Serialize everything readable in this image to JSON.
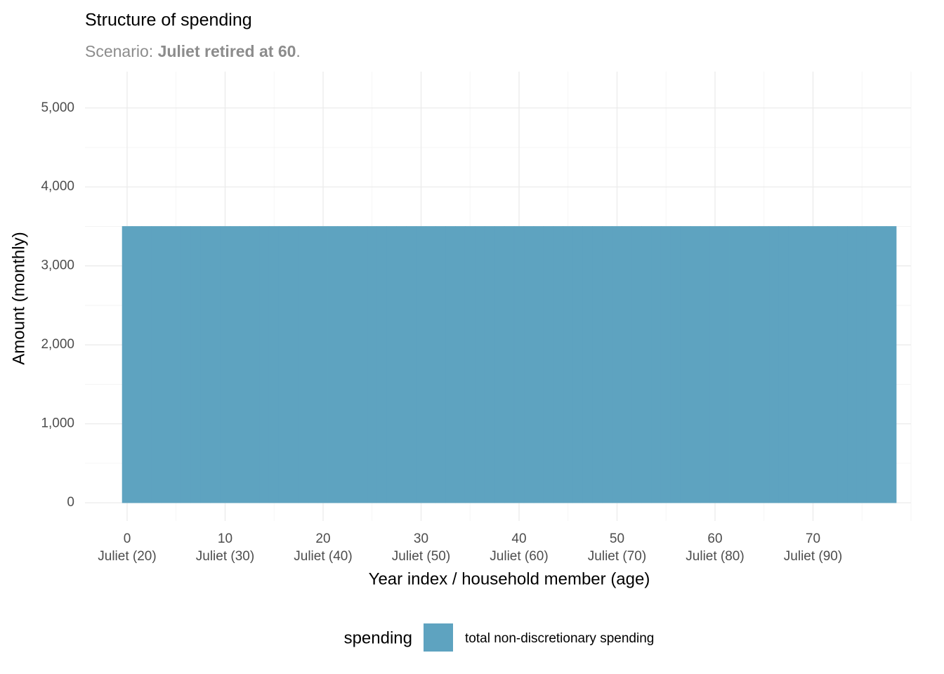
{
  "chart_data": {
    "type": "bar",
    "title": "Structure of spending",
    "subtitle": {
      "text": "Scenario: ",
      "bold": "Juliet retired at 60",
      "end": "."
    },
    "x_label": "Year index / household member (age)",
    "y_label": "Amount (monthly)",
    "legend_title": "spending",
    "legend": "bottom",
    "grid": true,
    "x": [
      0,
      1,
      2,
      3,
      4,
      5,
      6,
      7,
      8,
      9,
      10,
      11,
      12,
      13,
      14,
      15,
      16,
      17,
      18,
      19,
      20,
      21,
      22,
      23,
      24,
      25,
      26,
      27,
      28,
      29,
      30,
      31,
      32,
      33,
      34,
      35,
      36,
      37,
      38,
      39,
      40,
      41,
      42,
      43,
      44,
      45,
      46,
      47,
      48,
      49,
      50,
      51,
      52,
      53,
      54,
      55,
      56,
      57,
      58,
      59,
      60,
      61,
      62,
      63,
      64,
      65,
      66,
      67,
      68,
      69,
      70,
      71,
      72,
      73,
      74,
      75,
      76,
      77,
      78
    ],
    "series": [
      {
        "name": "total non-discretionary spending",
        "color": "#5ea3c0",
        "values": [
          3500,
          3500,
          3500,
          3500,
          3500,
          3500,
          3500,
          3500,
          3500,
          3500,
          3500,
          3500,
          3500,
          3500,
          3500,
          3500,
          3500,
          3500,
          3500,
          3500,
          3500,
          3500,
          3500,
          3500,
          3500,
          3500,
          3500,
          3500,
          3500,
          3500,
          3500,
          3500,
          3500,
          3500,
          3500,
          3500,
          3500,
          3500,
          3500,
          3500,
          3500,
          3500,
          3500,
          3500,
          3500,
          3500,
          3500,
          3500,
          3500,
          3500,
          3500,
          3500,
          3500,
          3500,
          3500,
          3500,
          3500,
          3500,
          3500,
          3500,
          3500,
          3500,
          3500,
          3500,
          3500,
          3500,
          3500,
          3500,
          3500,
          3500,
          3500,
          3500,
          3500,
          3500,
          3500,
          3500,
          3500,
          3500,
          3500
        ]
      }
    ],
    "xlim": [
      -4.3,
      80
    ],
    "ylim": [
      -230,
      5460
    ],
    "xticks": [
      {
        "value": 0,
        "label": "0\nJuliet (20)"
      },
      {
        "value": 10,
        "label": "10\nJuliet (30)"
      },
      {
        "value": 20,
        "label": "20\nJuliet (40)"
      },
      {
        "value": 30,
        "label": "30\nJuliet (50)"
      },
      {
        "value": 40,
        "label": "40\nJuliet (60)"
      },
      {
        "value": 50,
        "label": "50\nJuliet (70)"
      },
      {
        "value": 60,
        "label": "60\nJuliet (80)"
      },
      {
        "value": 70,
        "label": "70\nJuliet (90)"
      }
    ],
    "minor_xticks": [
      5,
      15,
      25,
      35,
      45,
      55,
      65,
      75,
      80
    ],
    "yticks": [
      0,
      {
        "value": 1000,
        "label": "1,000"
      },
      {
        "value": 2000,
        "label": "2,000"
      },
      {
        "value": 3000,
        "label": "3,000"
      },
      {
        "value": 4000,
        "label": "4,000"
      },
      {
        "value": 5000,
        "label": "5,000"
      }
    ],
    "minor_yticks": [
      500,
      1500,
      2500,
      3500,
      4500
    ]
  }
}
